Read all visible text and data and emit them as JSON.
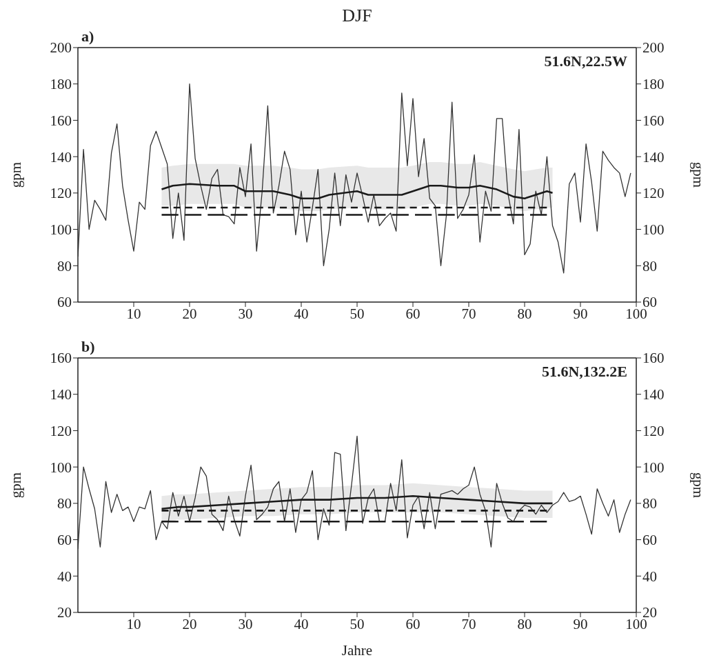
{
  "chart_data": [
    {
      "type": "line",
      "title": "DJF",
      "ylabel": "gpm",
      "y2label": "gpm",
      "annotations": [
        "a)",
        "51.6N,22.5W"
      ],
      "xlim": [
        0,
        100
      ],
      "xticks": [
        10,
        20,
        30,
        40,
        50,
        60,
        70,
        80,
        90,
        100
      ],
      "ylim": [
        60,
        200
      ],
      "yticks": [
        60,
        80,
        100,
        120,
        140,
        160,
        180,
        200
      ],
      "y2lim": [
        60,
        200
      ],
      "y2ticks": [
        60,
        80,
        100,
        120,
        140,
        160,
        180,
        200
      ],
      "grid": false,
      "line_style": "solid",
      "series": [
        {
          "color": "#333333",
          "x": [
            0,
            1,
            2,
            3,
            4,
            5,
            6,
            7,
            8,
            9,
            10,
            11,
            12,
            13,
            14,
            15,
            16,
            17,
            18,
            19,
            20,
            21,
            22,
            23,
            24,
            25,
            26,
            27,
            28,
            29,
            30,
            31,
            32,
            33,
            34,
            35,
            36,
            37,
            38,
            39,
            40,
            41,
            42,
            43,
            44,
            45,
            46,
            47,
            48,
            49,
            50,
            51,
            52,
            53,
            54,
            55,
            56,
            57,
            58,
            59,
            60,
            61,
            62,
            63,
            64,
            65,
            66,
            67,
            68,
            69,
            70,
            71,
            72,
            73,
            74,
            75,
            76,
            77,
            78,
            79,
            80,
            81,
            82,
            83,
            84,
            85,
            86,
            87,
            88,
            89,
            90,
            91,
            92,
            93,
            94,
            95,
            96,
            97,
            98,
            99
          ],
          "values": [
            85,
            144,
            100,
            116,
            111,
            105,
            142,
            158,
            124,
            105,
            88,
            115,
            111,
            146,
            154,
            145,
            136,
            95,
            120,
            94,
            180,
            139,
            124,
            111,
            128,
            133,
            108,
            107,
            103,
            134,
            118,
            147,
            88,
            121,
            168,
            109,
            124,
            143,
            133,
            97,
            121,
            93,
            112,
            133,
            80,
            100,
            131,
            102,
            130,
            115,
            131,
            118,
            104,
            119,
            102,
            106,
            109,
            99,
            175,
            135,
            172,
            129,
            150,
            117,
            113,
            80,
            108,
            170,
            106,
            111,
            119,
            141,
            93,
            121,
            110,
            161,
            161,
            120,
            103,
            155,
            86,
            92,
            121,
            108,
            140,
            102,
            93,
            76,
            125,
            131,
            104,
            147,
            126,
            99,
            143,
            138,
            134,
            131,
            118,
            131
          ]
        },
        {
          "color": "#1a1a1a",
          "x": [
            15,
            17,
            20,
            25,
            28,
            30,
            35,
            38,
            40,
            43,
            45,
            50,
            52,
            55,
            58,
            60,
            63,
            65,
            68,
            70,
            72,
            75,
            78,
            80,
            82,
            84,
            85
          ],
          "values": [
            122,
            124,
            125,
            124,
            124,
            121,
            121,
            119,
            117,
            117,
            119,
            121,
            119,
            119,
            119,
            121,
            124,
            124,
            123,
            123,
            124,
            122,
            118,
            117,
            119,
            121,
            120
          ],
          "lower": [
            113,
            113,
            114,
            114,
            114,
            112,
            112,
            111,
            110,
            110,
            111,
            112,
            111,
            111,
            111,
            112,
            114,
            114,
            113,
            113,
            114,
            113,
            111,
            110,
            111,
            112,
            112
          ],
          "upper": [
            134,
            135,
            136,
            136,
            136,
            135,
            135,
            134,
            133,
            133,
            134,
            135,
            134,
            134,
            134,
            135,
            137,
            137,
            136,
            136,
            137,
            135,
            133,
            132,
            133,
            134,
            134
          ]
        },
        {
          "color": "#1a1a1a",
          "line_style": "dashed",
          "x": [
            15,
            84
          ],
          "values": [
            112,
            112
          ]
        },
        {
          "color": "#1a1a1a",
          "line_style": "dashed",
          "x": [
            15,
            84
          ],
          "values": [
            108,
            108
          ]
        }
      ]
    },
    {
      "type": "line",
      "xlabel": "Jahre",
      "ylabel": "gpm",
      "y2label": "gpm",
      "annotations": [
        "b)",
        "51.6N,132.2E"
      ],
      "xlim": [
        0,
        100
      ],
      "xticks": [
        10,
        20,
        30,
        40,
        50,
        60,
        70,
        80,
        90,
        100
      ],
      "ylim": [
        20,
        160
      ],
      "yticks": [
        20,
        40,
        60,
        80,
        100,
        120,
        140,
        160
      ],
      "y2lim": [
        20,
        160
      ],
      "y2ticks": [
        20,
        40,
        60,
        80,
        100,
        120,
        140,
        160
      ],
      "grid": false,
      "line_style": "solid",
      "series": [
        {
          "color": "#333333",
          "x": [
            0,
            1,
            2,
            3,
            4,
            5,
            6,
            7,
            8,
            9,
            10,
            11,
            12,
            13,
            14,
            15,
            16,
            17,
            18,
            19,
            20,
            21,
            22,
            23,
            24,
            25,
            26,
            27,
            28,
            29,
            30,
            31,
            32,
            33,
            34,
            35,
            36,
            37,
            38,
            39,
            40,
            41,
            42,
            43,
            44,
            45,
            46,
            47,
            48,
            49,
            50,
            51,
            52,
            53,
            54,
            55,
            56,
            57,
            58,
            59,
            60,
            61,
            62,
            63,
            64,
            65,
            66,
            67,
            68,
            69,
            70,
            71,
            72,
            73,
            74,
            75,
            76,
            77,
            78,
            79,
            80,
            81,
            82,
            83,
            84,
            85,
            86,
            87,
            88,
            89,
            90,
            91,
            92,
            93,
            94,
            95,
            96,
            97,
            98,
            99
          ],
          "values": [
            55,
            100,
            88,
            77,
            56,
            92,
            75,
            85,
            76,
            78,
            70,
            78,
            77,
            87,
            60,
            70,
            66,
            86,
            73,
            84,
            70,
            83,
            100,
            95,
            74,
            71,
            65,
            84,
            71,
            62,
            84,
            101,
            71,
            74,
            78,
            88,
            92,
            70,
            88,
            64,
            82,
            86,
            98,
            60,
            77,
            68,
            108,
            107,
            65,
            90,
            117,
            69,
            83,
            88,
            70,
            70,
            91,
            76,
            104,
            61,
            79,
            84,
            66,
            86,
            66,
            85,
            86,
            87,
            85,
            88,
            90,
            100,
            85,
            76,
            56,
            91,
            80,
            72,
            70,
            76,
            79,
            78,
            74,
            79,
            75,
            79,
            81,
            86,
            81,
            82,
            84,
            74,
            63,
            88,
            80,
            73,
            82,
            64,
            74,
            82
          ]
        },
        {
          "color": "#1a1a1a",
          "x": [
            15,
            18,
            20,
            25,
            30,
            35,
            40,
            45,
            50,
            55,
            60,
            65,
            70,
            75,
            80,
            85
          ],
          "values": [
            77,
            78,
            78,
            79,
            80,
            81,
            82,
            82,
            83,
            83,
            84,
            83,
            82,
            81,
            80,
            80
          ],
          "lower": [
            70,
            71,
            71,
            72,
            73,
            73,
            74,
            74,
            75,
            75,
            75,
            75,
            74,
            73,
            72,
            72
          ],
          "upper": [
            84,
            85,
            85,
            86,
            87,
            88,
            89,
            89,
            90,
            90,
            91,
            90,
            89,
            88,
            87,
            87
          ]
        },
        {
          "color": "#1a1a1a",
          "line_style": "dashed",
          "x": [
            15,
            84
          ],
          "values": [
            76,
            76
          ]
        },
        {
          "color": "#1a1a1a",
          "line_style": "dashed",
          "x": [
            15,
            84
          ],
          "values": [
            70,
            70
          ]
        }
      ]
    }
  ]
}
